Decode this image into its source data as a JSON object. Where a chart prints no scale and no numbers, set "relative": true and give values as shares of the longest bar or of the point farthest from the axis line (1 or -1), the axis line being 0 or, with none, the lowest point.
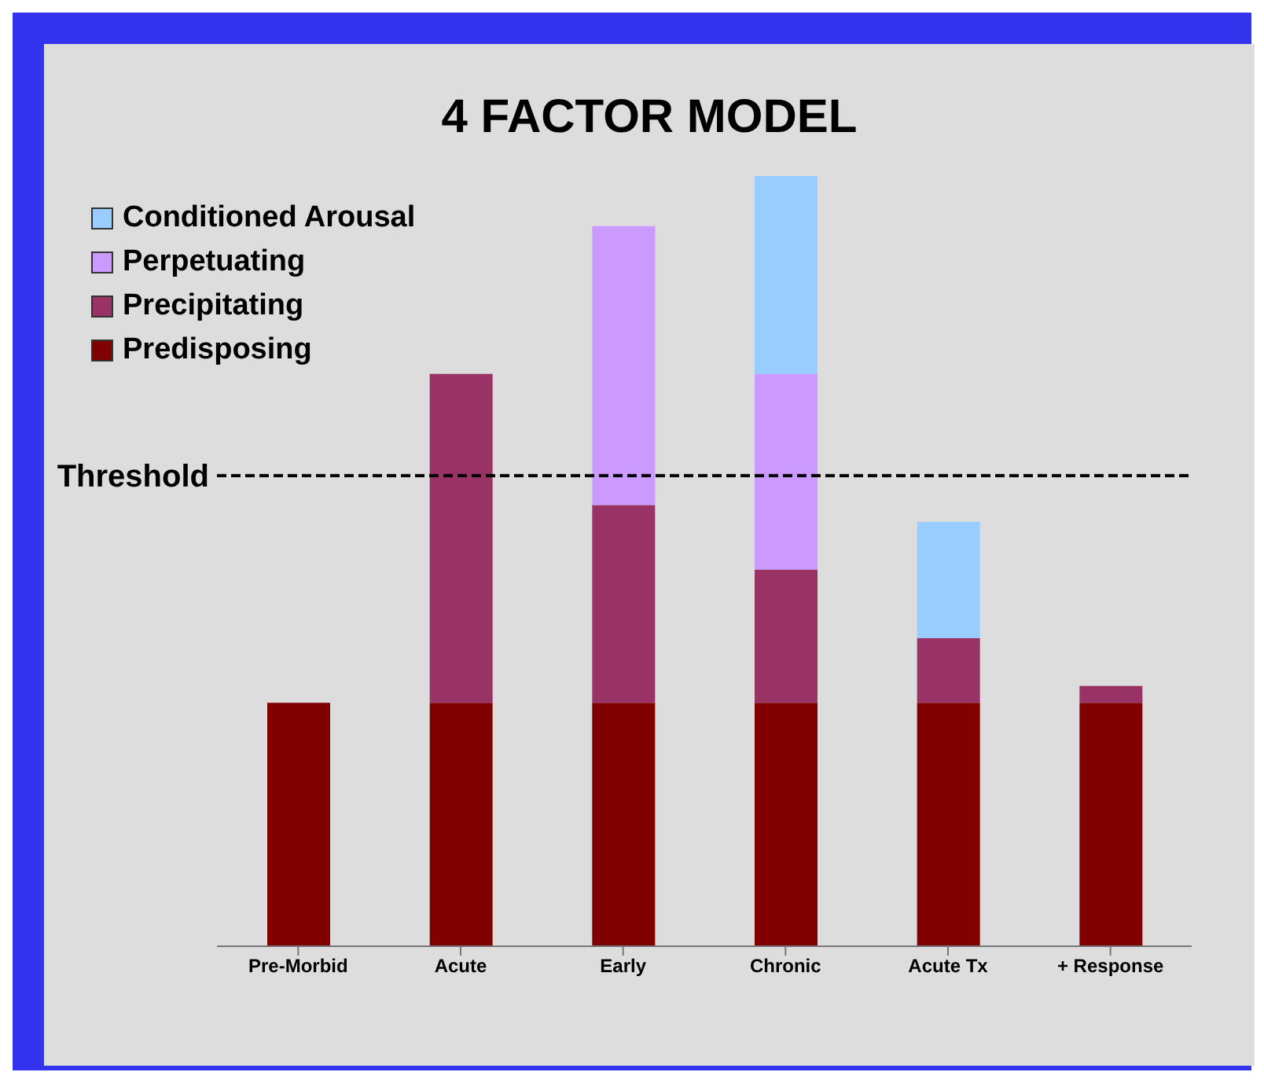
{
  "chart_data": {
    "type": "bar",
    "title": "4 FACTOR MODEL",
    "categories": [
      "Pre-Morbid",
      "Acute",
      "Early",
      "Chronic",
      "Acute Tx",
      "+ Response"
    ],
    "stacked": true,
    "relative": true,
    "legend": "top left",
    "series": [
      {
        "name": "Predisposing",
        "color": "#800000",
        "values": [
          0.316,
          0.316,
          0.316,
          0.316,
          0.316,
          0.316
        ]
      },
      {
        "name": "Precipitating",
        "color": "#993366",
        "values": [
          null,
          0.427,
          0.257,
          0.173,
          0.084,
          0.022
        ]
      },
      {
        "name": "Perpetuating",
        "color": "#cc99ff",
        "values": [
          null,
          null,
          0.362,
          0.254,
          null,
          null
        ]
      },
      {
        "name": "Conditioned Arousal",
        "color": "#99ccff",
        "values": [
          null,
          null,
          null,
          0.257,
          0.151,
          null
        ]
      }
    ],
    "ref_lines": [
      {
        "axis": "y",
        "value": 0.611,
        "label": "Threshold",
        "color": "#000000",
        "line_style": "dashed"
      }
    ]
  }
}
